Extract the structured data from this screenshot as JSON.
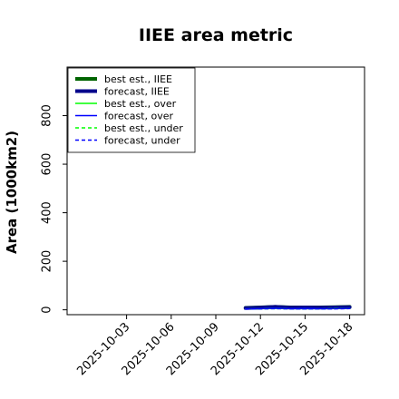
{
  "chart_data": {
    "type": "line",
    "title": "IIEE area metric",
    "ylabel": "Area (1000km2)",
    "xlabel": "",
    "ylim": [
      -20,
      1000
    ],
    "yticks": [
      0,
      200,
      400,
      600,
      800
    ],
    "xlim": [
      "2025-09-29",
      "2025-10-19"
    ],
    "xticks": [
      "2025-10-03",
      "2025-10-06",
      "2025-10-09",
      "2025-10-12",
      "2025-10-15",
      "2025-10-18"
    ],
    "xtick_labels": [
      {
        "text": "2025-10-03",
        "color": "#000000"
      },
      {
        "text": "2025-10-06",
        "color": "#000000"
      },
      {
        "text": "2025-10-09",
        "color": "#228b22"
      },
      {
        "text": "2025-10-12",
        "color": "#000000"
      },
      {
        "text": "2025-10-15",
        "color": "#000000"
      },
      {
        "text": "2025-10-18",
        "color": "#000000"
      }
    ],
    "legend_position": "top-left",
    "grid": false,
    "series": [
      {
        "name": "best est., IIEE",
        "color": "#006400",
        "style": "solid",
        "width": 4,
        "x": [
          "2025-10-11",
          "2025-10-12",
          "2025-10-13",
          "2025-10-14",
          "2025-10-15",
          "2025-10-16",
          "2025-10-17",
          "2025-10-18"
        ],
        "y": [
          8,
          10,
          12,
          10,
          10,
          10,
          11,
          12
        ]
      },
      {
        "name": "forecast, IIEE",
        "color": "#00008b",
        "style": "solid",
        "width": 4,
        "x": [
          "2025-10-11",
          "2025-10-12",
          "2025-10-13",
          "2025-10-14",
          "2025-10-15",
          "2025-10-16",
          "2025-10-17",
          "2025-10-18"
        ],
        "y": [
          7,
          9,
          12,
          9,
          10,
          9,
          10,
          11
        ]
      },
      {
        "name": "best est., over",
        "color": "#00ff00",
        "style": "solid",
        "width": 1.5,
        "x": [
          "2025-10-11",
          "2025-10-12",
          "2025-10-13",
          "2025-10-14",
          "2025-10-15",
          "2025-10-16",
          "2025-10-17",
          "2025-10-18"
        ],
        "y": [
          4,
          5,
          6,
          5,
          5,
          5,
          5,
          6
        ]
      },
      {
        "name": "forecast, over",
        "color": "#0000ff",
        "style": "solid",
        "width": 1.5,
        "x": [
          "2025-10-11",
          "2025-10-12",
          "2025-10-13",
          "2025-10-14",
          "2025-10-15",
          "2025-10-16",
          "2025-10-17",
          "2025-10-18"
        ],
        "y": [
          4,
          5,
          7,
          5,
          6,
          5,
          6,
          6
        ]
      },
      {
        "name": "best est., under",
        "color": "#00ff00",
        "style": "dashed",
        "width": 1.5,
        "x": [
          "2025-10-11",
          "2025-10-12",
          "2025-10-13",
          "2025-10-14",
          "2025-10-15",
          "2025-10-16",
          "2025-10-17",
          "2025-10-18"
        ],
        "y": [
          3,
          4,
          5,
          4,
          4,
          4,
          5,
          5
        ]
      },
      {
        "name": "forecast, under",
        "color": "#0000ff",
        "style": "dashed",
        "width": 1.5,
        "x": [
          "2025-10-11",
          "2025-10-12",
          "2025-10-13",
          "2025-10-14",
          "2025-10-15",
          "2025-10-16",
          "2025-10-17",
          "2025-10-18"
        ],
        "y": [
          3,
          4,
          5,
          4,
          4,
          4,
          4,
          5
        ]
      }
    ]
  }
}
